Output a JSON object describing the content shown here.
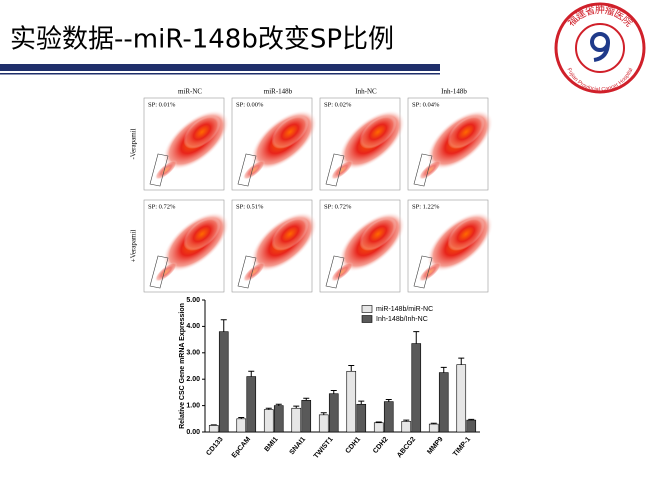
{
  "title": "实验数据--miR-148b改变SP比例",
  "logo": {
    "name_cn": "福建省肿瘤医院",
    "name_en": "Fujian Provincial Cancer Hospital"
  },
  "flow": {
    "columns": [
      "miR-NC",
      "miR-148b",
      "Inh-NC",
      "Inh-148b"
    ],
    "rows": [
      {
        "label": "-Verapamil",
        "sp": [
          "SP: 0.01%",
          "SP: 0.00%",
          "SP: 0.02%",
          "SP: 0.04%"
        ]
      },
      {
        "label": "+Verapamil",
        "sp": [
          "SP: 0.72%",
          "SP: 0.51%",
          "SP: 0.72%",
          "SP: 1.22%"
        ]
      }
    ]
  },
  "chart_data": {
    "type": "bar",
    "ylabel": "Relative CSC Gene mRNA Expression",
    "categories": [
      "CD133",
      "EpCAM",
      "BMI1",
      "SNAI1",
      "TWIST1",
      "CDH1",
      "CDH2",
      "ABCG2",
      "MMP9",
      "TIMP-1"
    ],
    "series": [
      {
        "name": "miR-148b/miR-NC",
        "color": "#e6e6e6",
        "values": [
          0.25,
          0.5,
          0.85,
          0.9,
          0.65,
          2.3,
          0.35,
          0.4,
          0.3,
          2.55
        ],
        "errors": [
          0.02,
          0.05,
          0.05,
          0.08,
          0.08,
          0.22,
          0.03,
          0.05,
          0.03,
          0.25
        ]
      },
      {
        "name": "Inh-148b/Inh-NC",
        "color": "#595959",
        "values": [
          3.8,
          2.1,
          1.0,
          1.2,
          1.45,
          1.05,
          1.15,
          3.35,
          2.25,
          0.45
        ],
        "errors": [
          0.45,
          0.2,
          0.05,
          0.08,
          0.12,
          0.12,
          0.08,
          0.45,
          0.2,
          0.03
        ]
      }
    ],
    "ylim": [
      0,
      5
    ],
    "yticks": [
      {
        "value": 0,
        "label": "0.00"
      },
      {
        "value": 1,
        "label": "1.00"
      },
      {
        "value": 2,
        "label": "2.00"
      },
      {
        "value": 3,
        "label": "3.00"
      },
      {
        "value": 4,
        "label": "4.00"
      },
      {
        "value": 5,
        "label": "5.00"
      }
    ],
    "legend": "upper right"
  }
}
